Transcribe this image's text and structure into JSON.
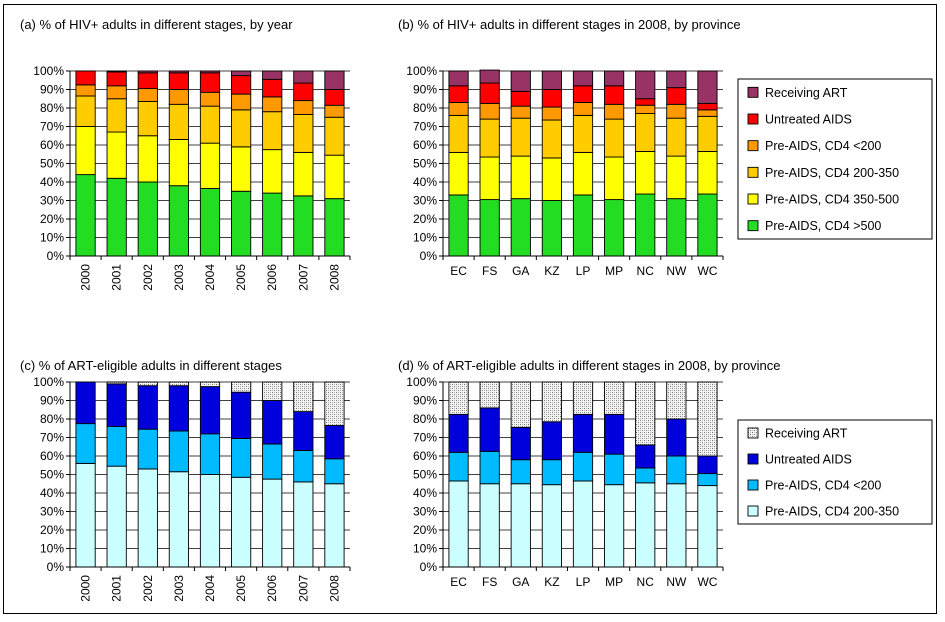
{
  "chart_data": [
    {
      "id": "a",
      "type": "bar",
      "stacked": true,
      "title": "(a) % of HIV+ adults in different stages, by year",
      "categories": [
        "2000",
        "2001",
        "2002",
        "2003",
        "2004",
        "2005",
        "2006",
        "2007",
        "2008"
      ],
      "category_label_orientation": "vertical",
      "ylim": [
        0,
        100
      ],
      "yticks": [
        "0%",
        "10%",
        "20%",
        "30%",
        "40%",
        "50%",
        "60%",
        "70%",
        "80%",
        "90%",
        "100%"
      ],
      "grid": true,
      "series": [
        {
          "name": "Pre-AIDS, CD4 >500",
          "color": "#22dd22",
          "values": [
            44,
            42,
            40,
            38,
            36.5,
            35,
            34,
            32.5,
            31
          ]
        },
        {
          "name": "Pre-AIDS, CD4 350-500",
          "color": "#ffff00",
          "values": [
            26,
            25,
            25,
            25,
            24.5,
            24,
            23.5,
            23.5,
            23.5
          ]
        },
        {
          "name": "Pre-AIDS, CD4 200-350",
          "color": "#ffcc00",
          "values": [
            16.5,
            18,
            18.5,
            19,
            20,
            20,
            20.5,
            20.5,
            20.5
          ]
        },
        {
          "name": "Pre-AIDS, CD4 <200",
          "color": "#ff9900",
          "values": [
            6,
            7,
            7,
            8,
            7.5,
            8.5,
            8,
            7.5,
            6.5
          ]
        },
        {
          "name": "Untreated AIDS",
          "color": "#ff0000",
          "values": [
            7.5,
            7.5,
            8.5,
            9,
            10.5,
            10,
            9.5,
            9.5,
            8.5
          ]
        },
        {
          "name": "Receiving ART",
          "color": "#993366",
          "values": [
            0,
            0.5,
            1,
            1,
            1,
            2.5,
            4.5,
            6.5,
            10
          ]
        }
      ]
    },
    {
      "id": "b",
      "type": "bar",
      "stacked": true,
      "title": "(b) % of HIV+ adults in different stages in 2008, by province",
      "categories": [
        "EC",
        "FS",
        "GA",
        "KZ",
        "LP",
        "MP",
        "NC",
        "NW",
        "WC"
      ],
      "category_label_orientation": "horizontal",
      "ylim": [
        0,
        100
      ],
      "yticks": [
        "0%",
        "10%",
        "20%",
        "30%",
        "40%",
        "50%",
        "60%",
        "70%",
        "80%",
        "90%",
        "100%"
      ],
      "grid": true,
      "legend": "right",
      "series": [
        {
          "name": "Pre-AIDS, CD4 >500",
          "color": "#22dd22",
          "values": [
            33,
            30.5,
            31,
            30,
            33,
            30.5,
            33.5,
            31,
            33.5
          ]
        },
        {
          "name": "Pre-AIDS, CD4 350-500",
          "color": "#ffff00",
          "values": [
            23,
            23,
            23,
            23,
            23,
            23,
            23,
            23,
            23
          ]
        },
        {
          "name": "Pre-AIDS, CD4 200-350",
          "color": "#ffcc00",
          "values": [
            20,
            20.5,
            20.5,
            20.5,
            20,
            20.5,
            20.5,
            20.5,
            19
          ]
        },
        {
          "name": "Pre-AIDS, CD4 <200",
          "color": "#ff9900",
          "values": [
            7,
            8.5,
            6.5,
            7,
            7,
            8,
            4.5,
            7.5,
            3.5
          ]
        },
        {
          "name": "Untreated AIDS",
          "color": "#ff0000",
          "values": [
            9,
            11,
            8,
            9.5,
            9,
            10,
            3.5,
            9,
            3.5
          ]
        },
        {
          "name": "Receiving ART",
          "color": "#993366",
          "values": [
            8,
            7,
            11,
            10,
            8,
            8,
            15,
            9,
            17.5
          ]
        }
      ]
    },
    {
      "id": "c",
      "type": "bar",
      "stacked": true,
      "title": "(c) % of ART-eligible adults in different stages",
      "categories": [
        "2000",
        "2001",
        "2002",
        "2003",
        "2004",
        "2005",
        "2006",
        "2007",
        "2008"
      ],
      "category_label_orientation": "vertical",
      "ylim": [
        0,
        100
      ],
      "yticks": [
        "0%",
        "10%",
        "20%",
        "30%",
        "40%",
        "50%",
        "60%",
        "70%",
        "80%",
        "90%",
        "100%"
      ],
      "grid": true,
      "series": [
        {
          "name": "Pre-AIDS, CD4 200-350",
          "color": "#ccffff",
          "values": [
            56,
            54.5,
            53,
            51.5,
            50,
            48.5,
            47.5,
            46,
            45
          ]
        },
        {
          "name": "Pre-AIDS, CD4 <200",
          "color": "#00bbff",
          "values": [
            21.5,
            21.5,
            21.5,
            22,
            22,
            21,
            19,
            17,
            13.5
          ]
        },
        {
          "name": "Untreated AIDS",
          "color": "#0000dd",
          "values": [
            22.5,
            23,
            23.5,
            24.5,
            25.5,
            25,
            23.5,
            21,
            18
          ]
        },
        {
          "name": "Receiving ART",
          "color": "#e8e8e8",
          "pattern": true,
          "values": [
            0,
            1,
            2,
            2,
            2.5,
            5.5,
            10,
            16,
            23.5
          ]
        }
      ]
    },
    {
      "id": "d",
      "type": "bar",
      "stacked": true,
      "title": "(d) % of ART-eligible adults in different stages in 2008, by province",
      "categories": [
        "EC",
        "FS",
        "GA",
        "KZ",
        "LP",
        "MP",
        "NC",
        "NW",
        "WC"
      ],
      "category_label_orientation": "horizontal",
      "ylim": [
        0,
        100
      ],
      "yticks": [
        "0%",
        "10%",
        "20%",
        "30%",
        "40%",
        "50%",
        "60%",
        "70%",
        "80%",
        "90%",
        "100%"
      ],
      "grid": true,
      "legend": "right",
      "series": [
        {
          "name": "Pre-AIDS, CD4 200-350",
          "color": "#ccffff",
          "values": [
            46.5,
            45,
            45,
            44.5,
            46.5,
            44.5,
            45.5,
            45,
            44
          ]
        },
        {
          "name": "Pre-AIDS, CD4 <200",
          "color": "#00bbff",
          "values": [
            15.5,
            17.5,
            13,
            13.5,
            15.5,
            16.5,
            8,
            15,
            6.5
          ]
        },
        {
          "name": "Untreated AIDS",
          "color": "#0000dd",
          "values": [
            20.5,
            23.5,
            17.5,
            20.5,
            20.5,
            21.5,
            12.5,
            20,
            9.5
          ]
        },
        {
          "name": "Receiving ART",
          "color": "#e8e8e8",
          "pattern": true,
          "values": [
            17.5,
            14,
            24.5,
            21.5,
            17.5,
            17.5,
            34,
            20,
            40
          ]
        }
      ]
    }
  ]
}
